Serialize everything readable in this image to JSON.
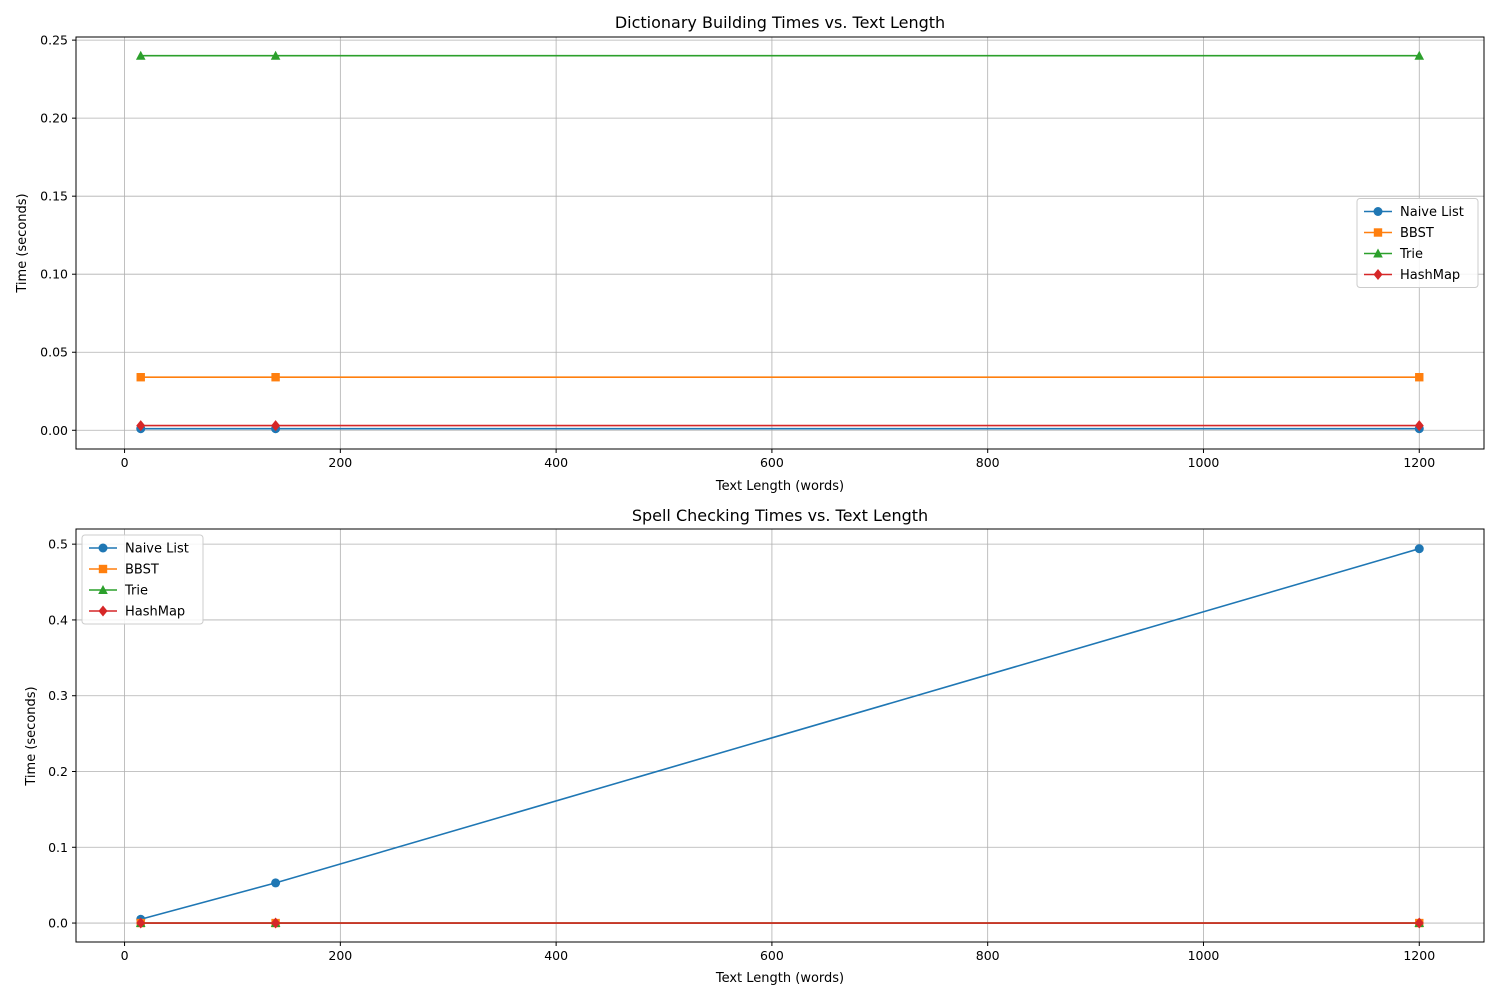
{
  "chart_data": [
    {
      "type": "line",
      "title": "Dictionary Building Times vs. Text Length",
      "xlabel": "Text Length (words)",
      "ylabel": "Time (seconds)",
      "x": [
        15,
        140,
        1200
      ],
      "xlim": [
        -45,
        1260
      ],
      "ylim": [
        -0.012,
        0.252
      ],
      "xticks": [
        0,
        200,
        400,
        600,
        800,
        1000,
        1200
      ],
      "yticks": [
        0.0,
        0.05,
        0.1,
        0.15,
        0.2,
        0.25
      ],
      "ytick_labels": [
        "0.00",
        "0.05",
        "0.10",
        "0.15",
        "0.20",
        "0.25"
      ],
      "grid": true,
      "legend_position": "center-right",
      "series": [
        {
          "name": "Naive List",
          "values": [
            0.001,
            0.001,
            0.001
          ],
          "color": "#1f77b4",
          "marker": "circle"
        },
        {
          "name": "BBST",
          "values": [
            0.034,
            0.034,
            0.034
          ],
          "color": "#ff7f0e",
          "marker": "square"
        },
        {
          "name": "Trie",
          "values": [
            0.24,
            0.24,
            0.24
          ],
          "color": "#2ca02c",
          "marker": "triangle"
        },
        {
          "name": "HashMap",
          "values": [
            0.003,
            0.003,
            0.003
          ],
          "color": "#d62728",
          "marker": "diamond"
        }
      ]
    },
    {
      "type": "line",
      "title": "Spell Checking Times vs. Text Length",
      "xlabel": "Text Length (words)",
      "ylabel": "Time (seconds)",
      "x": [
        15,
        140,
        1200
      ],
      "xlim": [
        -45,
        1260
      ],
      "ylim": [
        -0.025,
        0.52
      ],
      "xticks": [
        0,
        200,
        400,
        600,
        800,
        1000,
        1200
      ],
      "yticks": [
        0.0,
        0.1,
        0.2,
        0.3,
        0.4,
        0.5
      ],
      "ytick_labels": [
        "0.0",
        "0.1",
        "0.2",
        "0.3",
        "0.4",
        "0.5"
      ],
      "grid": true,
      "legend_position": "upper-left",
      "series": [
        {
          "name": "Naive List",
          "values": [
            0.005,
            0.053,
            0.494
          ],
          "color": "#1f77b4",
          "marker": "circle"
        },
        {
          "name": "BBST",
          "values": [
            0.0,
            0.0,
            0.0
          ],
          "color": "#ff7f0e",
          "marker": "square"
        },
        {
          "name": "Trie",
          "values": [
            0.0,
            0.0,
            0.0
          ],
          "color": "#2ca02c",
          "marker": "triangle"
        },
        {
          "name": "HashMap",
          "values": [
            0.0,
            0.0,
            0.0
          ],
          "color": "#d62728",
          "marker": "diamond"
        }
      ]
    }
  ]
}
